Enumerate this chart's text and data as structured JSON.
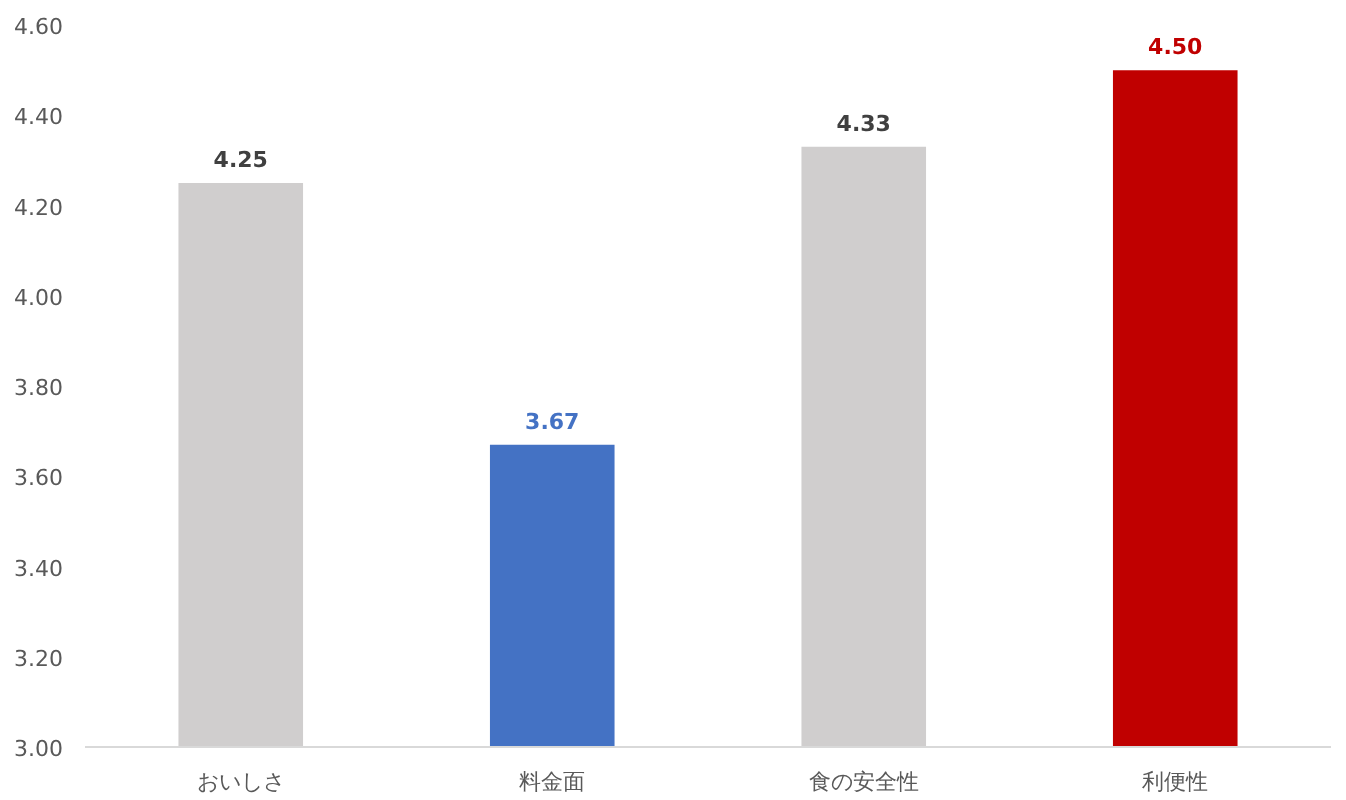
{
  "chart_data": {
    "type": "bar",
    "categories": [
      "おいしさ",
      "料金面",
      "食の安全性",
      "利便性"
    ],
    "values": [
      4.25,
      3.67,
      4.33,
      4.5
    ],
    "colors": [
      "#d0cece",
      "#4472c4",
      "#d0cece",
      "#c00000"
    ],
    "value_labels": [
      "4.25",
      "3.67",
      "4.33",
      "4.50"
    ],
    "ylim": [
      3.0,
      4.6
    ],
    "yticks": [
      {
        "value": 3.0,
        "label": "3.00"
      },
      {
        "value": 3.2,
        "label": "3.20"
      },
      {
        "value": 3.4,
        "label": "3.40"
      },
      {
        "value": 3.6,
        "label": "3.60"
      },
      {
        "value": 3.8,
        "label": "3.80"
      },
      {
        "value": 4.0,
        "label": "4.00"
      },
      {
        "value": 4.2,
        "label": "4.20"
      },
      {
        "value": 4.4,
        "label": "4.40"
      },
      {
        "value": 4.6,
        "label": "4.60"
      }
    ],
    "grid": false
  }
}
